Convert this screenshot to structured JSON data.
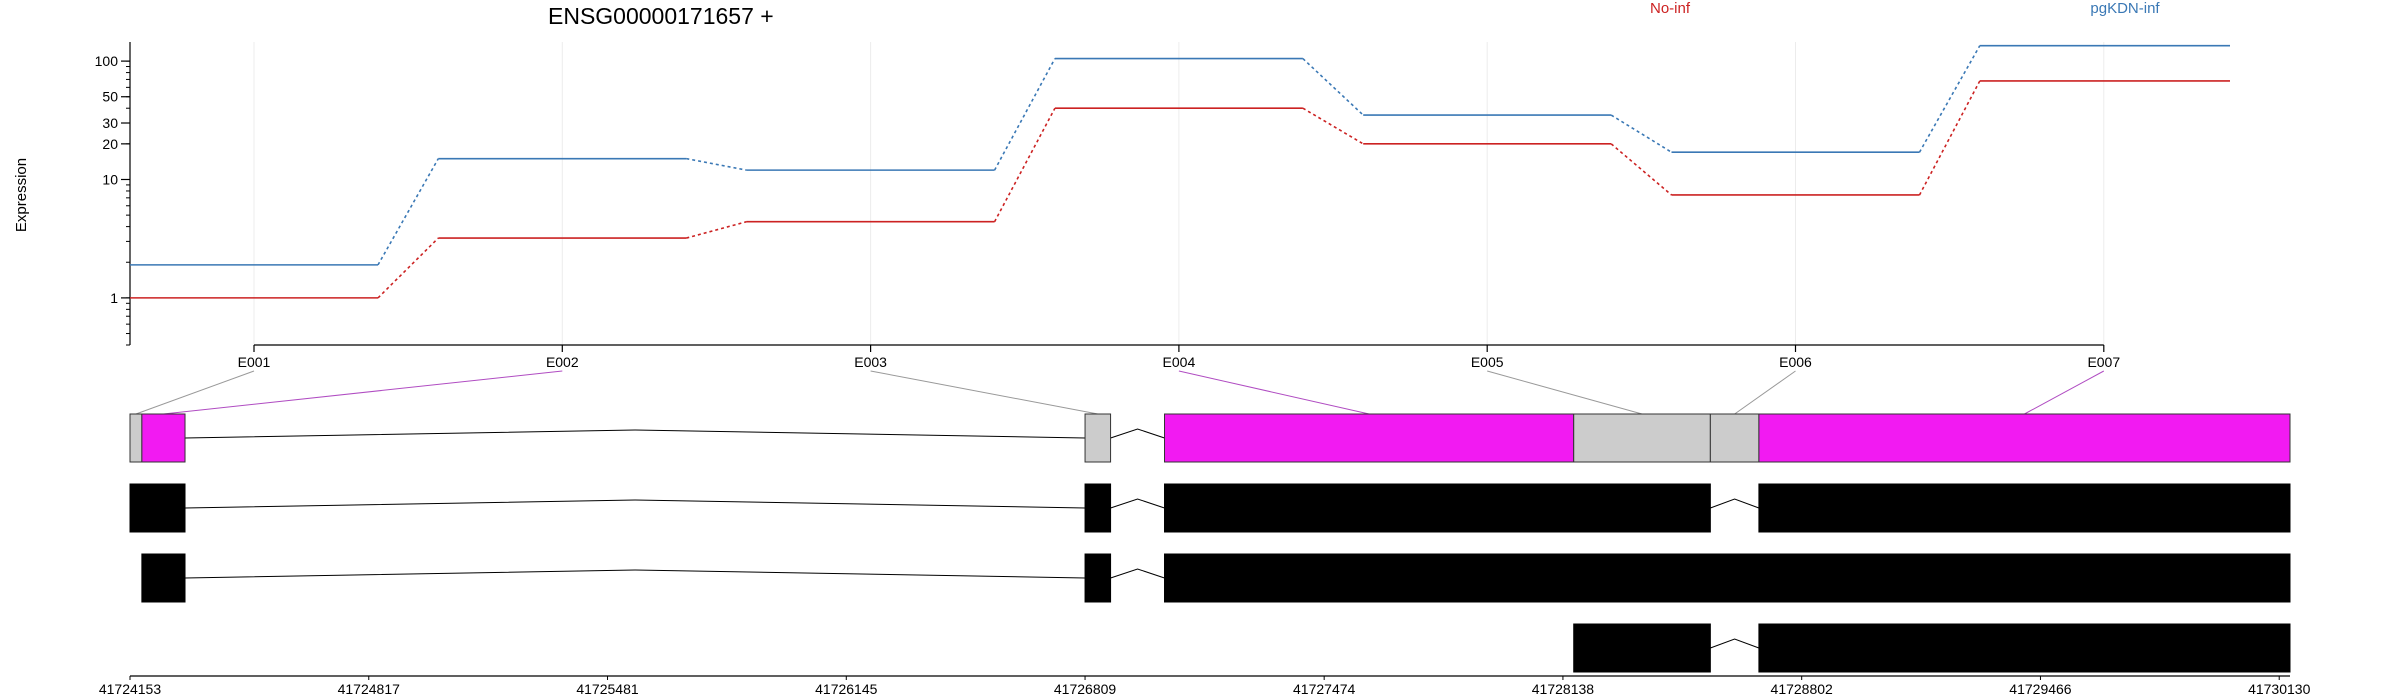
{
  "chart_data": {
    "type": "line",
    "title": "ENSG00000171657 +",
    "ylabel": "Expression",
    "xlabel": "",
    "scale_y": "log",
    "yticks": [
      1,
      10,
      20,
      30,
      50,
      100
    ],
    "ylim": [
      0.4,
      145
    ],
    "categories": [
      "E001",
      "E002",
      "E003",
      "E004",
      "E005",
      "E006",
      "E007"
    ],
    "series": [
      {
        "name": "No-inf",
        "color": "#cc2222",
        "values": [
          1.0,
          3.2,
          4.4,
          40,
          20,
          7.4,
          68
        ]
      },
      {
        "name": "pgKDN-inf",
        "color": "#3a78b5",
        "values": [
          1.9,
          15,
          12,
          105,
          35,
          17,
          135
        ]
      }
    ],
    "legend_position": "top-right",
    "grid": "vertical-light",
    "exon_track": {
      "exon_bins": [
        {
          "label": "E001",
          "start": 41724153,
          "end": 41724186,
          "color": "#cccccc"
        },
        {
          "label": "E002",
          "start": 41724186,
          "end": 41724306,
          "color": "#f21af2"
        },
        {
          "label": "E003",
          "start": 41726809,
          "end": 41726880,
          "color": "#cccccc"
        },
        {
          "label": "E004",
          "start": 41727030,
          "end": 41728168,
          "color": "#f21af2"
        },
        {
          "label": "E005",
          "start": 41728168,
          "end": 41728548,
          "color": "#cccccc"
        },
        {
          "label": "E006",
          "start": 41728548,
          "end": 41728683,
          "color": "#cccccc"
        },
        {
          "label": "E007",
          "start": 41728683,
          "end": 41730160,
          "color": "#f21af2"
        }
      ],
      "transcripts": [
        [
          [
            41724153,
            41724306
          ],
          [
            41726809,
            41726880
          ],
          [
            41727030,
            41728548
          ],
          [
            41728683,
            41730160
          ]
        ],
        [
          [
            41724186,
            41724306
          ],
          [
            41726809,
            41726880
          ],
          [
            41727030,
            41730160
          ]
        ],
        [
          [
            41728168,
            41728548
          ],
          [
            41728683,
            41730160
          ]
        ]
      ],
      "genomic_ticks": [
        41724153,
        41724817,
        41725481,
        41726145,
        41726809,
        41727474,
        41728138,
        41728802,
        41729466,
        41730130
      ],
      "colors": {
        "intron": "#000000",
        "transcript": "#000000",
        "connector_gray": "#999999",
        "connector_magenta": "#b04cc2"
      }
    }
  }
}
